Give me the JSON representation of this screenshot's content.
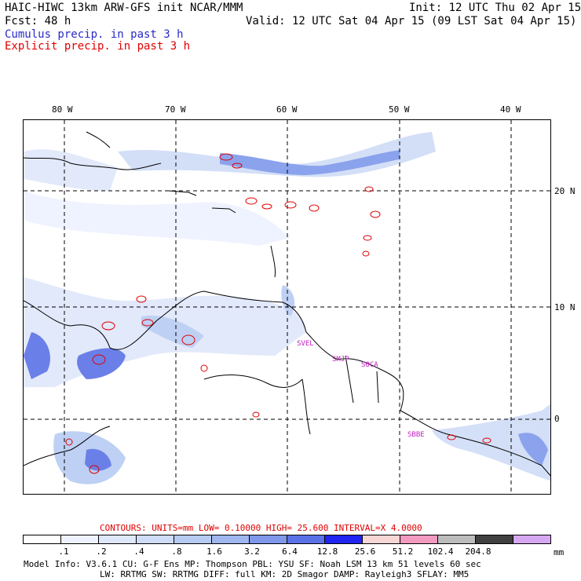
{
  "header": {
    "title": "HAIC-HIWC 13km ARW-GFS init   NCAR/MMM",
    "init": "Init: 12 UTC Thu 02 Apr 15",
    "fcst": "Fcst:   48 h",
    "valid": "Valid: 12 UTC Sat 04 Apr 15 (09 LST Sat 04 Apr 15)",
    "cumulus": "Cumulus precip. in past 3 h",
    "explicit": "Explicit precip. in past 3 h"
  },
  "map": {
    "lon_labels": [
      "80 W",
      "70 W",
      "60 W",
      "50 W",
      "40 W"
    ],
    "lat_labels": [
      "20 N",
      "10 N",
      "0"
    ],
    "stations": [
      "SVEL",
      "SMJP",
      "SOCA",
      "SBBE"
    ]
  },
  "contours_line": "CONTOURS:  UNITS=mm  LOW= 0.10000     HIGH=  25.600     INTERVAL=X  4.0000",
  "colorbar": {
    "colors": [
      "#ffffff",
      "#eef2ff",
      "#dfe7fa",
      "#cfdcf7",
      "#b7cbf2",
      "#9fb6ee",
      "#7f98ea",
      "#5b72e6",
      "#1f24f0",
      "#f7d6d6",
      "#f29ac0",
      "#bcbcbc",
      "#404040",
      "#d7a8f2"
    ],
    "labels": [
      ".1",
      ".2",
      ".4",
      ".8",
      "1.6",
      "3.2",
      "6.4",
      "12.8",
      "25.6",
      "51.2",
      "102.4",
      "204.8"
    ],
    "units": "mm"
  },
  "model_info": {
    "line1": "Model Info: V3.6.1    CU: G-F Ens MP: Thompson    PBL: YSU     SF: Noah LSM    13 km    51 levels   60 sec",
    "line2": "LW: RRTMG   SW: RRTMG  DIFF: full   KM: 2D Smagor DAMP: Rayleigh3  SFLAY: MM5"
  }
}
